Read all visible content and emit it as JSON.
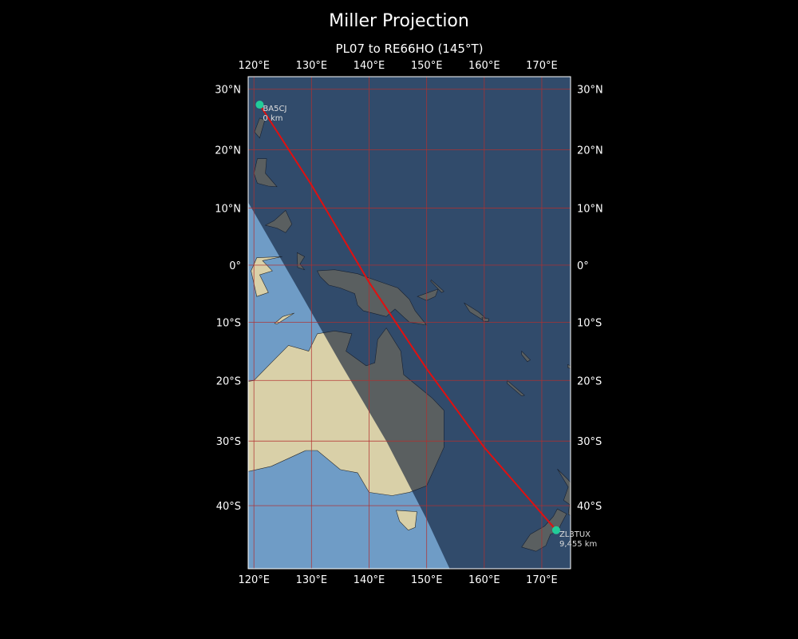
{
  "figure": {
    "title": "Miller Projection",
    "subtitle": "PL07 to RE66HO (145°T)"
  },
  "map": {
    "projection": "Miller",
    "lon_range": [
      119,
      175
    ],
    "lat_range": [
      -49,
      32
    ],
    "grid": true,
    "lon_ticks": [
      {
        "value": 120,
        "label": "120°E"
      },
      {
        "value": 130,
        "label": "130°E"
      },
      {
        "value": 140,
        "label": "140°E"
      },
      {
        "value": 150,
        "label": "150°E"
      },
      {
        "value": 160,
        "label": "160°E"
      },
      {
        "value": 170,
        "label": "170°E"
      }
    ],
    "lat_ticks": [
      {
        "value": 30,
        "label": "30°N"
      },
      {
        "value": 20,
        "label": "20°N"
      },
      {
        "value": 10,
        "label": "10°N"
      },
      {
        "value": 0,
        "label": "0°"
      },
      {
        "value": -10,
        "label": "10°S"
      },
      {
        "value": -20,
        "label": "20°S"
      },
      {
        "value": -30,
        "label": "30°S"
      },
      {
        "value": -40,
        "label": "40°S"
      }
    ],
    "colors": {
      "ocean": "#6f9cc6",
      "land": "#d9d0a8",
      "night_shade": "#0b1a33",
      "grid": "#b23030",
      "path": "#e01010",
      "station": "#22cc99"
    },
    "stations": [
      {
        "call": "BA5CJ",
        "dist": "0 km",
        "lon": 121.0,
        "lat": 27.5
      },
      {
        "call": "ZL3TUX",
        "dist": "9,455 km",
        "lon": 172.5,
        "lat": -43.6
      }
    ],
    "terminator": [
      [
        119,
        11
      ],
      [
        127,
        -3
      ],
      [
        135,
        -17
      ],
      [
        143,
        -30
      ],
      [
        150,
        -42
      ],
      [
        154,
        -49
      ]
    ],
    "path": [
      [
        121.0,
        27.5
      ],
      [
        130,
        14
      ],
      [
        140,
        -3
      ],
      [
        150,
        -18
      ],
      [
        160,
        -31
      ],
      [
        172.5,
        -43.6
      ]
    ],
    "land": {
      "australia": [
        [
          113.5,
          -22
        ],
        [
          114,
          -26
        ],
        [
          115,
          -34
        ],
        [
          118,
          -35
        ],
        [
          123,
          -34
        ],
        [
          129,
          -31.5
        ],
        [
          131,
          -31.5
        ],
        [
          135,
          -34.5
        ],
        [
          138,
          -35
        ],
        [
          140,
          -38
        ],
        [
          144,
          -38.5
        ],
        [
          147,
          -38
        ],
        [
          150,
          -37
        ],
        [
          153,
          -31
        ],
        [
          153,
          -25
        ],
        [
          151,
          -23
        ],
        [
          146,
          -19
        ],
        [
          145.5,
          -15
        ],
        [
          143,
          -11
        ],
        [
          141.5,
          -13
        ],
        [
          141,
          -17
        ],
        [
          139.5,
          -17.5
        ],
        [
          136,
          -15
        ],
        [
          137,
          -12
        ],
        [
          134,
          -11.5
        ],
        [
          131,
          -12
        ],
        [
          129.5,
          -15
        ],
        [
          126,
          -14
        ],
        [
          123,
          -17
        ],
        [
          120,
          -20
        ],
        [
          117,
          -20.5
        ]
      ],
      "tasmania": [
        [
          144.7,
          -40.7
        ],
        [
          148.3,
          -40.9
        ],
        [
          148,
          -43.2
        ],
        [
          146.8,
          -43.6
        ],
        [
          145.3,
          -42.3
        ]
      ],
      "new_guinea": [
        [
          131,
          -1
        ],
        [
          134,
          -0.8
        ],
        [
          138,
          -1.5
        ],
        [
          141,
          -2.6
        ],
        [
          145,
          -4
        ],
        [
          147,
          -6
        ],
        [
          148,
          -8
        ],
        [
          150,
          -10.5
        ],
        [
          147,
          -10
        ],
        [
          144.5,
          -7.7
        ],
        [
          143,
          -9
        ],
        [
          139,
          -8
        ],
        [
          138,
          -7
        ],
        [
          137.5,
          -5
        ],
        [
          135,
          -4
        ],
        [
          133,
          -3.5
        ],
        [
          131.5,
          -2
        ]
      ],
      "south_island_nz": [
        [
          172.7,
          -40.5
        ],
        [
          174.3,
          -41.2
        ],
        [
          173.3,
          -42.8
        ],
        [
          172.8,
          -43.8
        ],
        [
          171.5,
          -44.2
        ],
        [
          170.7,
          -45.8
        ],
        [
          169,
          -46.6
        ],
        [
          166.5,
          -46
        ],
        [
          168,
          -44.2
        ],
        [
          170.5,
          -43
        ],
        [
          172,
          -41.6
        ]
      ],
      "north_island_nz": [
        [
          172.7,
          -34.4
        ],
        [
          174.5,
          -36
        ],
        [
          176,
          -37.5
        ],
        [
          178.5,
          -37.7
        ],
        [
          178,
          -39
        ],
        [
          176.8,
          -39.6
        ],
        [
          175.3,
          -41.6
        ],
        [
          174.6,
          -41.3
        ],
        [
          174.8,
          -39.8
        ],
        [
          173.8,
          -39.2
        ],
        [
          174.6,
          -37.2
        ]
      ],
      "taiwan": [
        [
          120.1,
          23
        ],
        [
          121.0,
          25.3
        ],
        [
          121.9,
          25.0
        ],
        [
          121.0,
          22.0
        ]
      ],
      "luzon": [
        [
          120,
          16
        ],
        [
          120.6,
          18.5
        ],
        [
          122.2,
          18.5
        ],
        [
          122,
          16
        ],
        [
          124,
          13.7
        ],
        [
          122.5,
          13.8
        ],
        [
          120.6,
          14.3
        ]
      ],
      "mindanao": [
        [
          122,
          7
        ],
        [
          123.5,
          7.8
        ],
        [
          125.5,
          9.6
        ],
        [
          126.6,
          7.2
        ],
        [
          125.5,
          5.7
        ],
        [
          124,
          6.5
        ]
      ],
      "sulawesi": [
        [
          119.5,
          -1
        ],
        [
          120.5,
          1.3
        ],
        [
          124.9,
          1.5
        ],
        [
          121.5,
          0.8
        ],
        [
          123.2,
          -1
        ],
        [
          121,
          -1.7
        ],
        [
          122.5,
          -4.8
        ],
        [
          120.5,
          -5.5
        ]
      ],
      "timor": [
        [
          124,
          -10.3
        ],
        [
          127,
          -8.4
        ],
        [
          125,
          -9
        ],
        [
          123.6,
          -10.2
        ]
      ],
      "halmahera": [
        [
          127.5,
          2.2
        ],
        [
          128.8,
          1.5
        ],
        [
          128,
          0.2
        ],
        [
          128.8,
          -0.8
        ],
        [
          127.6,
          -0.4
        ]
      ],
      "new_britain": [
        [
          148.4,
          -5.5
        ],
        [
          152,
          -4.2
        ],
        [
          151.5,
          -5.5
        ],
        [
          150,
          -6.2
        ]
      ],
      "new_ireland": [
        [
          150.8,
          -2.6
        ],
        [
          153,
          -4.6
        ],
        [
          152.6,
          -4.8
        ],
        [
          150.7,
          -2.8
        ]
      ],
      "solomons": [
        [
          156.5,
          -6.6
        ],
        [
          159,
          -8.2
        ],
        [
          160.8,
          -9.8
        ],
        [
          159.6,
          -9.5
        ],
        [
          157.5,
          -8.2
        ]
      ],
      "guadalcanal": [
        [
          159.6,
          -9.2
        ],
        [
          160.8,
          -9.4
        ],
        [
          160.7,
          -9.9
        ],
        [
          159.8,
          -9.8
        ]
      ],
      "new_caledonia": [
        [
          164,
          -20
        ],
        [
          167,
          -22.5
        ],
        [
          166.5,
          -22.6
        ],
        [
          164,
          -20.5
        ]
      ],
      "vanuatu": [
        [
          166.5,
          -15
        ],
        [
          168,
          -16.5
        ],
        [
          167.5,
          -16.8
        ],
        [
          166.5,
          -15.6
        ]
      ],
      "fiji_west": [
        [
          174.5,
          -17.3
        ],
        [
          175,
          -17.5
        ],
        [
          175,
          -18
        ],
        [
          174.5,
          -17.8
        ]
      ]
    }
  }
}
